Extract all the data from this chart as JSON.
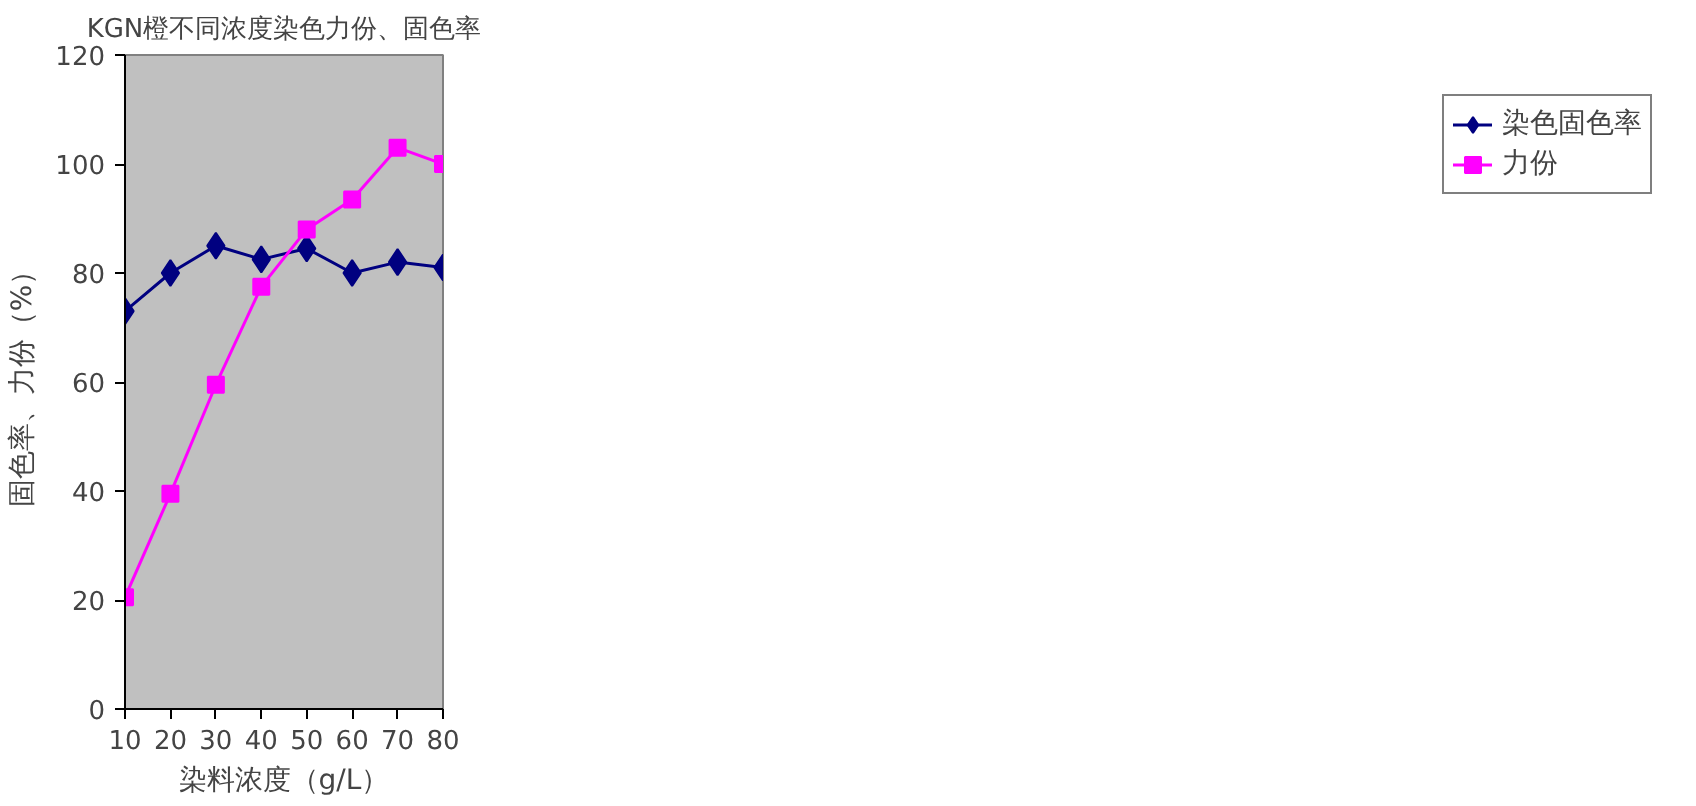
{
  "chart_data": {
    "type": "line",
    "title": "KGN橙不同浓度染色力份、固色率",
    "xlabel": "染料浓度（g/L）",
    "ylabel": "固色率、力份（%）",
    "x": [
      10,
      20,
      30,
      40,
      50,
      60,
      70,
      80
    ],
    "series": [
      {
        "name": "染色固色率",
        "color": "#000080",
        "marker": "diamond",
        "values": [
          73,
          80,
          85,
          82.5,
          84.5,
          80,
          82,
          81
        ]
      },
      {
        "name": "力份",
        "color": "#ff00ff",
        "marker": "square",
        "values": [
          20.5,
          39.5,
          59.5,
          77.5,
          88,
          93.5,
          103,
          100
        ]
      }
    ],
    "xlim": [
      10,
      80
    ],
    "xticks": [
      10,
      20,
      30,
      40,
      50,
      60,
      70,
      80
    ],
    "ylim": [
      0,
      120
    ],
    "yticks": [
      0,
      20,
      40,
      60,
      80,
      100,
      120
    ],
    "grid": false,
    "legend": "right",
    "line_style": "solid"
  }
}
